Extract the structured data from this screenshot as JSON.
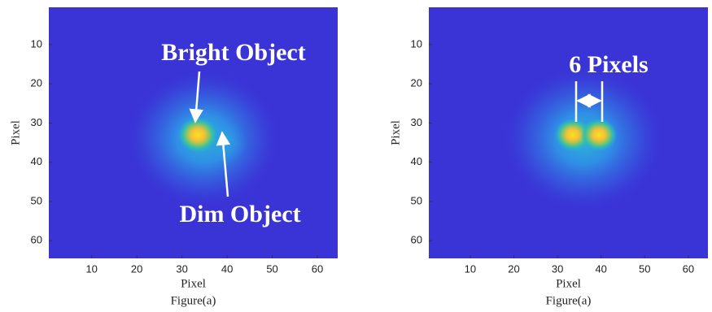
{
  "chart_data": [
    {
      "type": "heatmap",
      "xlabel": "Pixel",
      "ylabel": "Pixel",
      "caption": "Figure(a)",
      "xlim": [
        0.5,
        64.5
      ],
      "ylim": [
        64.5,
        0.5
      ],
      "xticks": [
        10,
        20,
        30,
        40,
        50,
        60
      ],
      "yticks": [
        10,
        20,
        30,
        40,
        50,
        60
      ],
      "annotations": [
        "Bright Object",
        "Dim Object"
      ]
    },
    {
      "type": "heatmap",
      "xlabel": "Pixel",
      "ylabel": "Pixel",
      "caption": "Figure(a)",
      "xlim": [
        0.5,
        64.5
      ],
      "ylim": [
        64.5,
        0.5
      ],
      "xticks": [
        10,
        20,
        30,
        40,
        50,
        60
      ],
      "yticks": [
        10,
        20,
        30,
        40,
        50,
        60
      ],
      "annotations": [
        "6 Pixels"
      ]
    }
  ]
}
